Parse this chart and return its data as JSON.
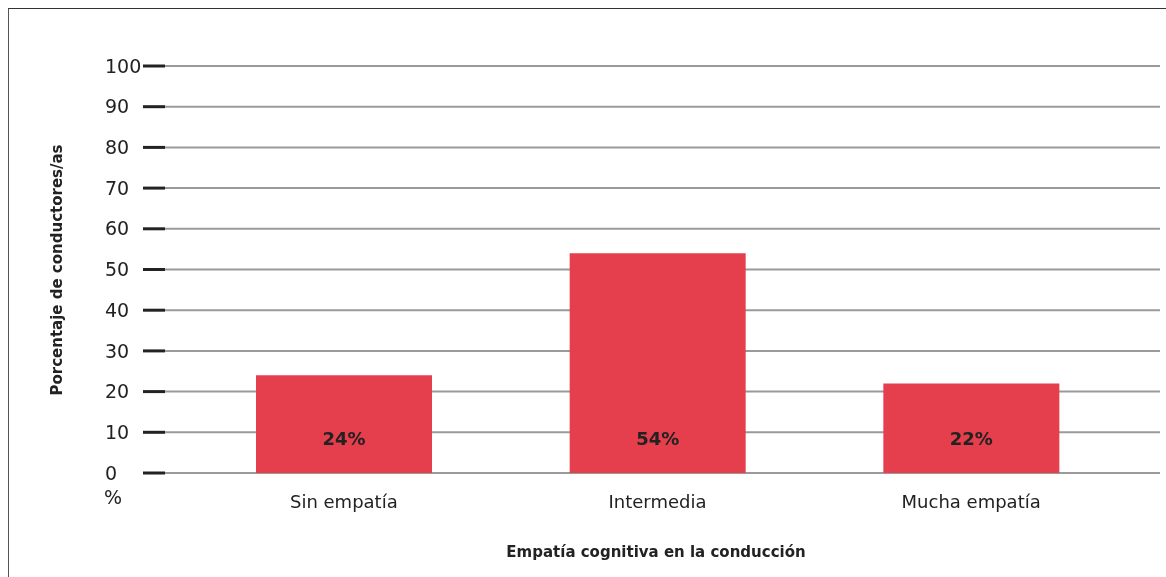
{
  "chart_data": {
    "type": "bar",
    "xlabel": "Empatía cognitiva en la conducción",
    "ylabel": "Porcentaje de conductores/as",
    "annotations": [
      "%"
    ],
    "categories": [
      "Sin empatía",
      "Intermedia",
      "Mucha empatía"
    ],
    "values": [
      24,
      54,
      22
    ],
    "color": "#e53e4c",
    "value_labels": [
      "24%",
      "54%",
      "22%"
    ],
    "ylim": [
      0,
      100
    ],
    "yticks": [
      0,
      10,
      20,
      30,
      40,
      50,
      60,
      70,
      80,
      90,
      100
    ],
    "grid": "y"
  }
}
